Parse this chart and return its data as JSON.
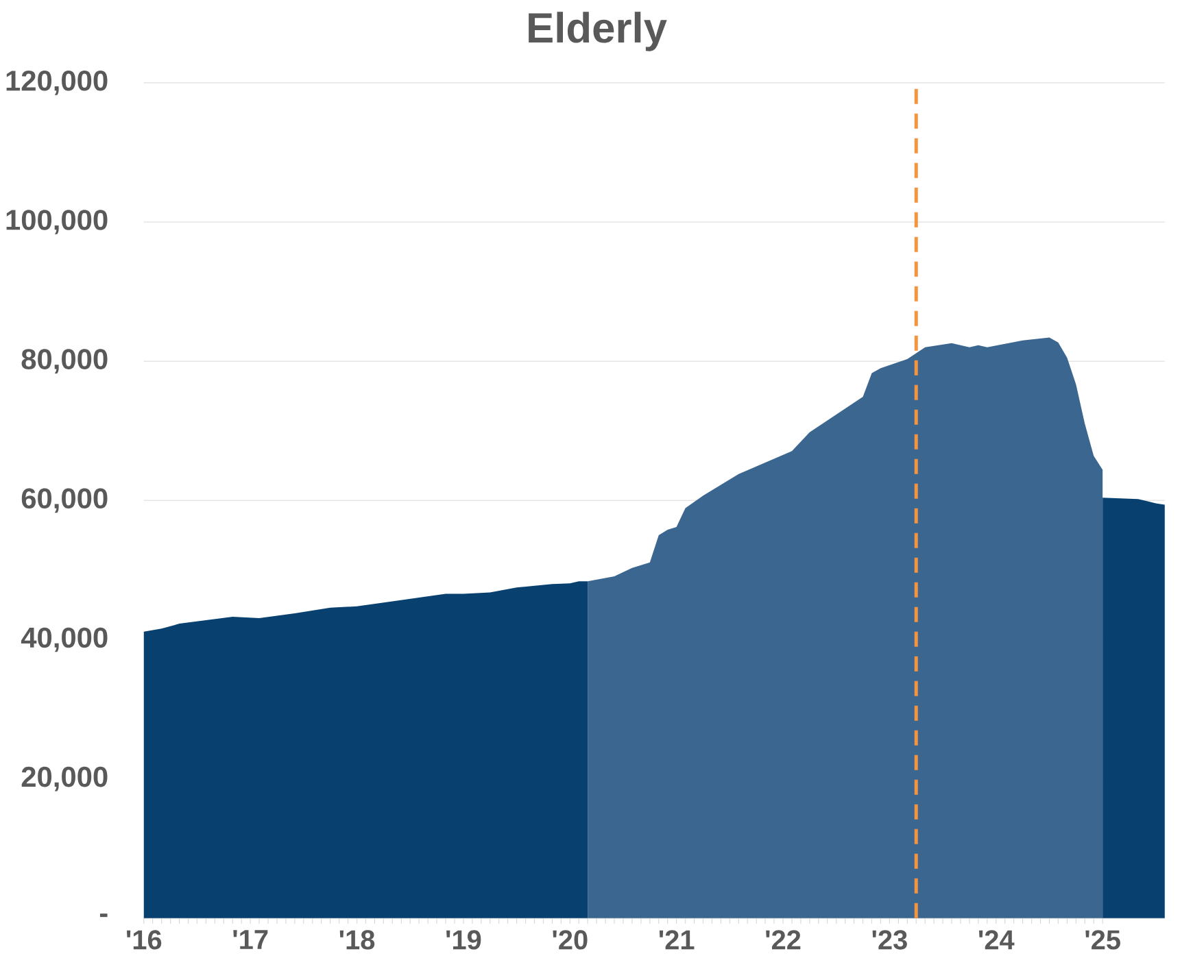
{
  "chart_data": {
    "type": "area",
    "title": "Elderly",
    "series": [
      {
        "color": "#08416f",
        "x": [
          "2016-01",
          "2016-03",
          "2016-05",
          "2016-08",
          "2016-11",
          "2017-02",
          "2017-06",
          "2017-10",
          "2018-01",
          "2018-05",
          "2018-11",
          "2019-01",
          "2019-04",
          "2019-07",
          "2019-11",
          "2020-01",
          "2020-02",
          "2020-03",
          "2022-06",
          "2025-01",
          "2025-05",
          "2025-06",
          "2025-07",
          "2025-08"
        ],
        "values": [
          41150,
          41600,
          42300,
          42800,
          43300,
          43100,
          43800,
          44600,
          44800,
          45500,
          46600,
          46600,
          46800,
          47500,
          48000,
          48100,
          48400,
          48400,
          null,
          60400,
          60200,
          59900,
          59600,
          59400
        ]
      },
      {
        "color": "#3a6690",
        "x": [
          "2020-03",
          "2020-06",
          "2020-08",
          "2020-10",
          "2020-11",
          "2020-12",
          "2021-01",
          "2021-02",
          "2021-04",
          "2021-08",
          "2022-02",
          "2022-04",
          "2022-10",
          "2022-11",
          "2022-12",
          "2023-03",
          "2023-05",
          "2023-08",
          "2023-10",
          "2023-11",
          "2023-12",
          "2024-04",
          "2024-07",
          "2024-08",
          "2024-09",
          "2024-10",
          "2024-11",
          "2024-12",
          "2025-01"
        ],
        "values": [
          48400,
          49100,
          50300,
          51100,
          55000,
          55800,
          56200,
          58900,
          60700,
          63800,
          67100,
          69800,
          74900,
          78300,
          79000,
          80300,
          82000,
          82600,
          82000,
          82300,
          82000,
          83000,
          83400,
          82700,
          80500,
          76700,
          71000,
          66400,
          64400
        ]
      }
    ],
    "xlim": [
      "2016-01",
      "2025-08"
    ],
    "xticks": [
      {
        "value": "2016-01",
        "label": "'16"
      },
      {
        "value": "2017-01",
        "label": "'17"
      },
      {
        "value": "2018-01",
        "label": "'18"
      },
      {
        "value": "2019-01",
        "label": "'19"
      },
      {
        "value": "2020-01",
        "label": "'20"
      },
      {
        "value": "2021-01",
        "label": "'21"
      },
      {
        "value": "2022-01",
        "label": "'22"
      },
      {
        "value": "2023-01",
        "label": "'23"
      },
      {
        "value": "2024-01",
        "label": "'24"
      },
      {
        "value": "2025-01",
        "label": "'25"
      }
    ],
    "ylim": [
      0,
      120000
    ],
    "yticks": [
      {
        "value": 0,
        "label": "-"
      },
      {
        "value": 20000,
        "label": "20,000"
      },
      {
        "value": 40000,
        "label": "40,000"
      },
      {
        "value": 60000,
        "label": "60,000"
      },
      {
        "value": 80000,
        "label": "80,000"
      },
      {
        "value": 100000,
        "label": "100,000"
      },
      {
        "value": 120000,
        "label": "120,000"
      }
    ],
    "grid": "y",
    "ref_lines": [
      {
        "axis": "x",
        "value": "2023-04",
        "color": "#f4943f",
        "line_style": "dashed"
      }
    ]
  }
}
